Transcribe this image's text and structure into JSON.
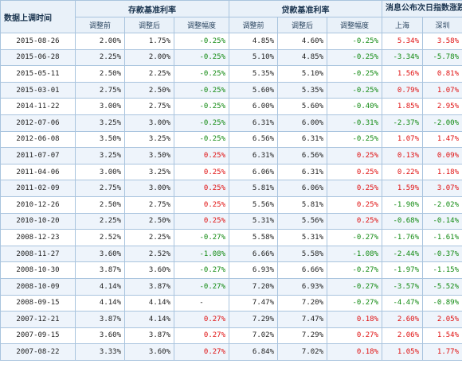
{
  "header": {
    "date_col": "数据上调时间",
    "deposit_group": "存款基准利率",
    "loan_group": "贷款基准利率",
    "market_group": "消息公布次日指数涨跌",
    "before": "调整前",
    "after": "调整后",
    "change": "调整幅度",
    "shanghai": "上海",
    "shenzhen": "深圳"
  },
  "colors": {
    "negative": "#118a11",
    "positive": "#e01010",
    "header_bg": "#e9f1f9",
    "border": "#a9c4de"
  },
  "rows": [
    {
      "date": "2015-08-26",
      "dep_before": "2.00%",
      "dep_after": "1.75%",
      "dep_change": "-0.25%",
      "loan_before": "4.85%",
      "loan_after": "4.60%",
      "loan_change": "-0.25%",
      "sh": "5.34%",
      "sz": "3.58%"
    },
    {
      "date": "2015-06-28",
      "dep_before": "2.25%",
      "dep_after": "2.00%",
      "dep_change": "-0.25%",
      "loan_before": "5.10%",
      "loan_after": "4.85%",
      "loan_change": "-0.25%",
      "sh": "-3.34%",
      "sz": "-5.78%"
    },
    {
      "date": "2015-05-11",
      "dep_before": "2.50%",
      "dep_after": "2.25%",
      "dep_change": "-0.25%",
      "loan_before": "5.35%",
      "loan_after": "5.10%",
      "loan_change": "-0.25%",
      "sh": "1.56%",
      "sz": "0.81%"
    },
    {
      "date": "2015-03-01",
      "dep_before": "2.75%",
      "dep_after": "2.50%",
      "dep_change": "-0.25%",
      "loan_before": "5.60%",
      "loan_after": "5.35%",
      "loan_change": "-0.25%",
      "sh": "0.79%",
      "sz": "1.07%"
    },
    {
      "date": "2014-11-22",
      "dep_before": "3.00%",
      "dep_after": "2.75%",
      "dep_change": "-0.25%",
      "loan_before": "6.00%",
      "loan_after": "5.60%",
      "loan_change": "-0.40%",
      "sh": "1.85%",
      "sz": "2.95%"
    },
    {
      "date": "2012-07-06",
      "dep_before": "3.25%",
      "dep_after": "3.00%",
      "dep_change": "-0.25%",
      "loan_before": "6.31%",
      "loan_after": "6.00%",
      "loan_change": "-0.31%",
      "sh": "-2.37%",
      "sz": "-2.00%"
    },
    {
      "date": "2012-06-08",
      "dep_before": "3.50%",
      "dep_after": "3.25%",
      "dep_change": "-0.25%",
      "loan_before": "6.56%",
      "loan_after": "6.31%",
      "loan_change": "-0.25%",
      "sh": "1.07%",
      "sz": "1.47%"
    },
    {
      "date": "2011-07-07",
      "dep_before": "3.25%",
      "dep_after": "3.50%",
      "dep_change": "0.25%",
      "loan_before": "6.31%",
      "loan_after": "6.56%",
      "loan_change": "0.25%",
      "sh": "0.13%",
      "sz": "0.09%"
    },
    {
      "date": "2011-04-06",
      "dep_before": "3.00%",
      "dep_after": "3.25%",
      "dep_change": "0.25%",
      "loan_before": "6.06%",
      "loan_after": "6.31%",
      "loan_change": "0.25%",
      "sh": "0.22%",
      "sz": "1.18%"
    },
    {
      "date": "2011-02-09",
      "dep_before": "2.75%",
      "dep_after": "3.00%",
      "dep_change": "0.25%",
      "loan_before": "5.81%",
      "loan_after": "6.06%",
      "loan_change": "0.25%",
      "sh": "1.59%",
      "sz": "3.07%"
    },
    {
      "date": "2010-12-26",
      "dep_before": "2.50%",
      "dep_after": "2.75%",
      "dep_change": "0.25%",
      "loan_before": "5.56%",
      "loan_after": "5.81%",
      "loan_change": "0.25%",
      "sh": "-1.90%",
      "sz": "-2.02%"
    },
    {
      "date": "2010-10-20",
      "dep_before": "2.25%",
      "dep_after": "2.50%",
      "dep_change": "0.25%",
      "loan_before": "5.31%",
      "loan_after": "5.56%",
      "loan_change": "0.25%",
      "sh": "-0.68%",
      "sz": "-0.14%"
    },
    {
      "date": "2008-12-23",
      "dep_before": "2.52%",
      "dep_after": "2.25%",
      "dep_change": "-0.27%",
      "loan_before": "5.58%",
      "loan_after": "5.31%",
      "loan_change": "-0.27%",
      "sh": "-1.76%",
      "sz": "-1.61%"
    },
    {
      "date": "2008-11-27",
      "dep_before": "3.60%",
      "dep_after": "2.52%",
      "dep_change": "-1.08%",
      "loan_before": "6.66%",
      "loan_after": "5.58%",
      "loan_change": "-1.08%",
      "sh": "-2.44%",
      "sz": "-0.37%"
    },
    {
      "date": "2008-10-30",
      "dep_before": "3.87%",
      "dep_after": "3.60%",
      "dep_change": "-0.27%",
      "loan_before": "6.93%",
      "loan_after": "6.66%",
      "loan_change": "-0.27%",
      "sh": "-1.97%",
      "sz": "-1.15%"
    },
    {
      "date": "2008-10-09",
      "dep_before": "4.14%",
      "dep_after": "3.87%",
      "dep_change": "-0.27%",
      "loan_before": "7.20%",
      "loan_after": "6.93%",
      "loan_change": "-0.27%",
      "sh": "-3.57%",
      "sz": "-5.52%"
    },
    {
      "date": "2008-09-15",
      "dep_before": "4.14%",
      "dep_after": "4.14%",
      "dep_change": "-",
      "loan_before": "7.47%",
      "loan_after": "7.20%",
      "loan_change": "-0.27%",
      "sh": "-4.47%",
      "sz": "-0.89%"
    },
    {
      "date": "2007-12-21",
      "dep_before": "3.87%",
      "dep_after": "4.14%",
      "dep_change": "0.27%",
      "loan_before": "7.29%",
      "loan_after": "7.47%",
      "loan_change": "0.18%",
      "sh": "2.60%",
      "sz": "2.05%"
    },
    {
      "date": "2007-09-15",
      "dep_before": "3.60%",
      "dep_after": "3.87%",
      "dep_change": "0.27%",
      "loan_before": "7.02%",
      "loan_after": "7.29%",
      "loan_change": "0.27%",
      "sh": "2.06%",
      "sz": "1.54%"
    },
    {
      "date": "2007-08-22",
      "dep_before": "3.33%",
      "dep_after": "3.60%",
      "dep_change": "0.27%",
      "loan_before": "6.84%",
      "loan_after": "7.02%",
      "loan_change": "0.18%",
      "sh": "1.05%",
      "sz": "1.77%"
    }
  ]
}
